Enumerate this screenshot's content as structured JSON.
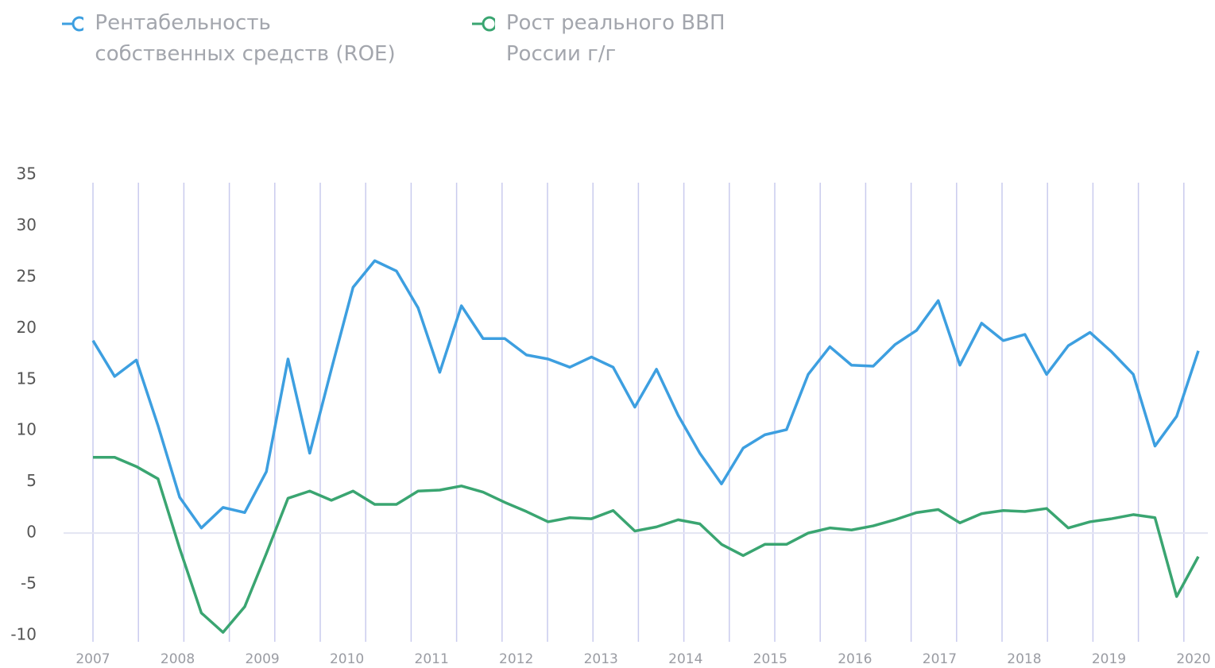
{
  "chart_data": {
    "type": "line",
    "x_labels": [
      "2007",
      "2008",
      "2009",
      "2010",
      "2011",
      "2012",
      "2013",
      "2014",
      "2015",
      "2016",
      "2017",
      "2018",
      "2019",
      "2020"
    ],
    "series": [
      {
        "name": "Рентабельность собственных средств (ROE)",
        "color": "#3d9fe0",
        "values": [
          18.8,
          15.3,
          16.9,
          10.5,
          3.5,
          0.5,
          2.5,
          2,
          6,
          17,
          7.8,
          16,
          24,
          26.6,
          25.6,
          22,
          15.7,
          22.2,
          19,
          19,
          17.4,
          17,
          16.2,
          17.2,
          16.2,
          12.3,
          16,
          11.5,
          7.8,
          4.8,
          8.3,
          9.6,
          10.1,
          15.5,
          18.2,
          16.4,
          16.3,
          18.4,
          19.8,
          22.7,
          16.4,
          20.5,
          18.8,
          19.4,
          15.5,
          18.3,
          19.6,
          17.7,
          15.5,
          8.5,
          11.4,
          17.8
        ]
      },
      {
        "name": "Рост реального ВВП России г/г",
        "color": "#3aa571",
        "values": [
          7.4,
          7.4,
          6.5,
          5.3,
          -1.5,
          -7.8,
          -9.7,
          -7.2,
          -2,
          3.4,
          4.1,
          3.2,
          4.1,
          2.8,
          2.8,
          4.1,
          4.2,
          4.6,
          4,
          3,
          2.1,
          1.1,
          1.5,
          1.4,
          2.2,
          0.2,
          0.6,
          1.3,
          0.9,
          -1.1,
          -2.2,
          -1.1,
          -1.1,
          0,
          0.5,
          0.3,
          0.7,
          1.3,
          2,
          2.3,
          1,
          1.9,
          2.2,
          2.1,
          2.4,
          0.5,
          1.1,
          1.4,
          1.8,
          1.5,
          -6.2,
          -2.3
        ]
      }
    ],
    "ylim": [
      -10,
      35
    ],
    "yticks": [
      -10,
      -5,
      0,
      5,
      10,
      15,
      20,
      25,
      30,
      35
    ]
  }
}
